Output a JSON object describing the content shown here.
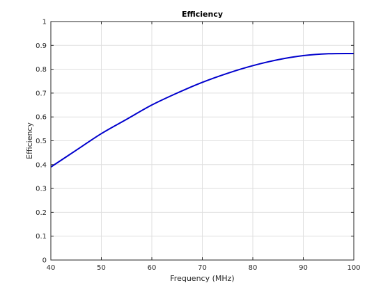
{
  "chart_data": {
    "type": "line",
    "title": "Efficiency",
    "xlabel": "Frequency (MHz)",
    "ylabel": "Efficiency",
    "xlim": [
      40,
      100
    ],
    "ylim": [
      0,
      1
    ],
    "grid": true,
    "x_ticks": [
      "40",
      "50",
      "60",
      "70",
      "80",
      "90",
      "100"
    ],
    "y_ticks": [
      "0",
      "0.1",
      "0.2",
      "0.3",
      "0.4",
      "0.5",
      "0.6",
      "0.7",
      "0.8",
      "0.9",
      "1"
    ],
    "series": [
      {
        "color": "#0000cd",
        "x": [
          40,
          45,
          50,
          55,
          60,
          65,
          70,
          75,
          80,
          85,
          90,
          95,
          100
        ],
        "y": [
          0.39,
          0.46,
          0.53,
          0.59,
          0.65,
          0.7,
          0.745,
          0.783,
          0.815,
          0.84,
          0.857,
          0.865,
          0.866
        ]
      }
    ]
  }
}
